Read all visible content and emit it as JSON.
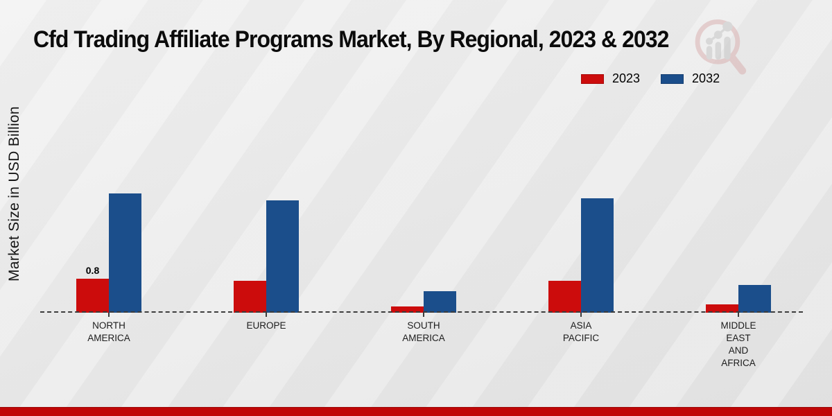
{
  "title": "Cfd Trading Affiliate Programs Market, By Regional, 2023 & 2032",
  "y_axis_label": "Market Size in USD Billion",
  "colors": {
    "series_2023": "#cc0c0c",
    "series_2032": "#1b4e8b",
    "footer_band": "#c00606",
    "axis_line": "#3c3c3c"
  },
  "watermark_icon": "magnifier-bar-chart-logo",
  "chart_data": {
    "type": "bar",
    "categories": [
      "NORTH AMERICA",
      "EUROPE",
      "SOUTH AMERICA",
      "ASIA PACIFIC",
      "MIDDLE EAST AND AFRICA"
    ],
    "category_lines": [
      [
        "NORTH",
        "AMERICA"
      ],
      [
        "EUROPE"
      ],
      [
        "SOUTH",
        "AMERICA"
      ],
      [
        "ASIA",
        "PACIFIC"
      ],
      [
        "MIDDLE",
        "EAST",
        "AND",
        "AFRICA"
      ]
    ],
    "series": [
      {
        "name": "2023",
        "color": "#cc0c0c",
        "values": [
          0.8,
          0.75,
          0.15,
          0.75,
          0.2
        ]
      },
      {
        "name": "2032",
        "color": "#1b4e8b",
        "values": [
          2.8,
          2.65,
          0.5,
          2.7,
          0.65
        ]
      }
    ],
    "data_labels": [
      {
        "series": "2023",
        "category": "NORTH AMERICA",
        "text": "0.8"
      }
    ],
    "title": "Cfd Trading Affiliate Programs Market, By Regional, 2023 & 2032",
    "xlabel": "",
    "ylabel": "Market Size in USD Billion",
    "ylim": [
      0,
      3.2
    ],
    "grid": false,
    "legend_position": "top-right",
    "baseline_style": "dashed"
  }
}
